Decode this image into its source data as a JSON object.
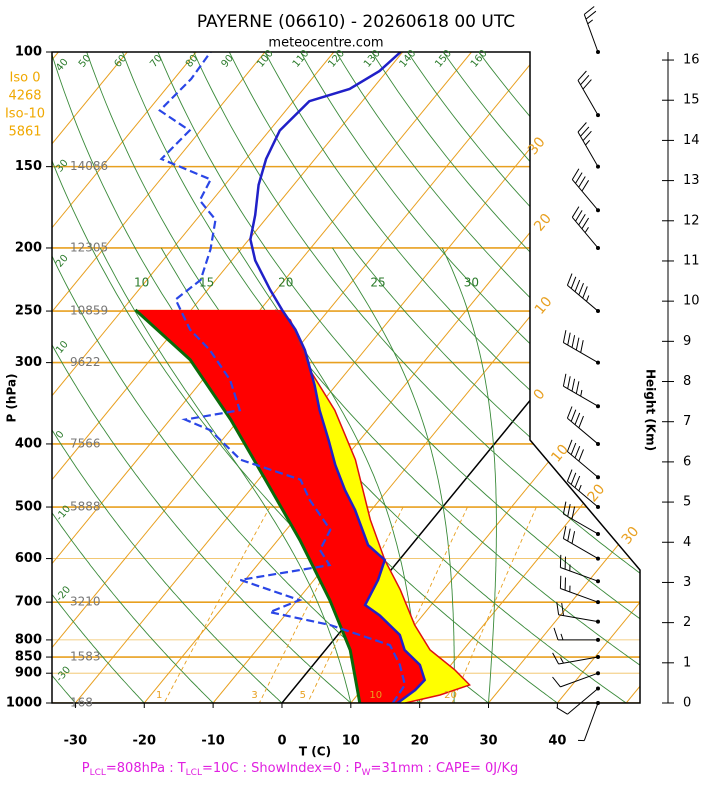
{
  "chart_data": {
    "type": "skewt",
    "title": "PAYERNE (06610) - 20260618 00 UTC",
    "subtitle": "meteocentre.com",
    "xlabel": "T (C)",
    "ylabel": "P (hPa)",
    "y2label": "Height (Km)",
    "footer": [
      "P",
      "LCL",
      "=808hPa : T",
      "LCL",
      "=10C : ShowIndex=0 : P",
      "W",
      "=31mm : CAPE= 0J/Kg"
    ],
    "freezing_levels": [
      {
        "label": "Iso 0",
        "height": 4268
      },
      {
        "label": "Iso-10",
        "height": 5861
      }
    ],
    "xlim": [
      -33.4,
      52
    ],
    "xticks": [
      -30,
      -20,
      -10,
      0,
      10,
      20,
      30,
      40
    ],
    "ylim": [
      100,
      1000
    ],
    "ylog": true,
    "yticks": [
      100,
      150,
      200,
      250,
      300,
      400,
      500,
      600,
      700,
      800,
      850,
      900,
      1000
    ],
    "y2lim": [
      0,
      16.2
    ],
    "y2ticks": [
      0,
      1,
      2,
      3,
      4,
      5,
      6,
      7,
      8,
      9,
      10,
      11,
      12,
      13,
      14,
      15,
      16
    ],
    "level_heights": {
      "pressure": [
        150,
        200,
        250,
        300,
        400,
        500,
        700,
        850,
        1000
      ],
      "height": [
        14086,
        12305,
        10859,
        9622,
        7566,
        5888,
        3210,
        1583,
        168
      ]
    },
    "isotherms": [
      -110,
      -100,
      -90,
      -80,
      -70,
      -60,
      -50,
      -40,
      -30,
      -20,
      -10,
      0,
      10,
      20,
      30,
      40,
      50
    ],
    "isotherm_labels": [
      {
        "value": -30,
        "label": "30"
      },
      {
        "value": -20,
        "label": "20"
      },
      {
        "value": -10,
        "label": "10"
      },
      {
        "value": 0,
        "label": "0"
      },
      {
        "value": 10,
        "label": "10"
      },
      {
        "value": 20,
        "label": "20"
      },
      {
        "value": 30,
        "label": "30"
      }
    ],
    "dry_adiabats": [
      -30,
      -20,
      -10,
      0,
      10,
      20,
      30,
      40,
      50,
      60,
      70,
      80,
      90,
      100,
      110,
      120,
      130,
      140,
      150,
      160
    ],
    "moist_adiabats": [
      10,
      15,
      20,
      25,
      30
    ],
    "mixing_ratios": [
      1,
      3,
      5,
      10,
      20
    ],
    "temperature": {
      "color": "#2020c8",
      "p": [
        1000,
        955,
        922,
        874,
        829,
        786,
        733,
        707,
        647,
        603,
        572,
        505,
        471,
        431,
        394,
        355,
        325,
        287,
        267,
        249,
        232,
        209,
        194,
        178,
        160,
        146,
        132,
        119,
        114,
        107,
        100
      ],
      "t": [
        16.8,
        17.8,
        18.0,
        15.5,
        11.5,
        9.0,
        3.7,
        0.4,
        -0.7,
        -2.1,
        -6.3,
        -12.4,
        -16.2,
        -20.6,
        -24.6,
        -29.4,
        -33.1,
        -38.7,
        -42.5,
        -46.8,
        -50.9,
        -56.6,
        -59.8,
        -62.0,
        -65.1,
        -67.1,
        -68.5,
        -67.7,
        -63.3,
        -61.1,
        -60.3
      ]
    },
    "dewpoint": {
      "color": "#2a46e6",
      "p": [
        1000,
        938,
        874,
        815,
        759,
        725,
        695,
        647,
        614,
        582,
        542,
        488,
        454,
        423,
        381,
        367,
        355,
        319,
        287,
        267,
        240,
        224,
        201,
        181,
        169,
        157,
        146,
        132,
        123,
        110,
        100
      ],
      "t": [
        16.1,
        15.7,
        12.6,
        8.8,
        -2.3,
        -12.6,
        -9.7,
        -20.7,
        -9.5,
        -12.7,
        -13.6,
        -20.1,
        -23.9,
        -35.0,
        -42.9,
        -47.8,
        -41.0,
        -46.0,
        -52.5,
        -57.8,
        -63.5,
        -62.2,
        -64.4,
        -67.2,
        -71.8,
        -72.7,
        -82.3,
        -81.6,
        -88.3,
        -87.5,
        -87.9
      ]
    },
    "parcel": {
      "color": "#0a6a0a",
      "fill": "#ff0000",
      "p": [
        1000,
        829,
        695,
        562,
        454,
        367,
        297,
        249
      ],
      "t": [
        11.3,
        3.6,
        -5.3,
        -16.8,
        -29.0,
        -41.2,
        -54.2,
        -68.1
      ]
    },
    "envelope": {
      "color": "#e01010",
      "fill": "#ffff00",
      "p": [
        1000,
        972,
        938,
        890,
        829,
        759,
        670,
        603,
        523,
        423,
        355,
        308,
        258,
        249
      ],
      "t": [
        17.9,
        22.0,
        25.1,
        21.2,
        15.2,
        10.0,
        3.7,
        -2.1,
        -9.0,
        -18.3,
        -27.2,
        -35.6,
        -44.4,
        -47.8
      ]
    },
    "winds": {
      "p": [
        1000,
        950,
        900,
        850,
        800,
        750,
        700,
        650,
        600,
        550,
        500,
        450,
        400,
        350,
        300,
        250,
        200,
        175,
        150,
        125,
        100
      ],
      "direction": [
        200,
        230,
        250,
        260,
        270,
        280,
        290,
        290,
        300,
        300,
        310,
        310,
        310,
        300,
        300,
        310,
        320,
        320,
        330,
        330,
        340
      ],
      "speed": [
        5,
        10,
        10,
        15,
        15,
        20,
        25,
        25,
        30,
        30,
        35,
        40,
        40,
        45,
        50,
        55,
        45,
        40,
        35,
        30,
        25
      ]
    }
  }
}
